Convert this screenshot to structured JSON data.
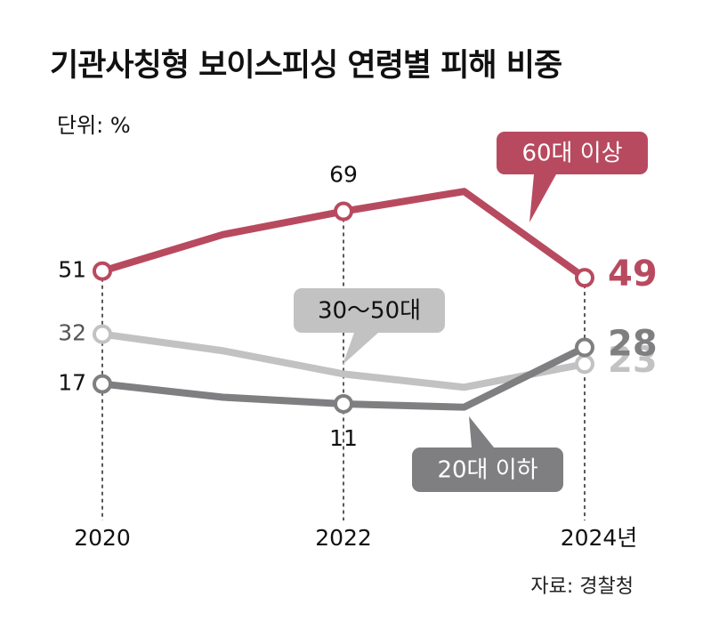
{
  "chart_data": {
    "type": "line",
    "title": "기관사칭형 보이스피싱 연령별 피해 비중",
    "unit": "단위: %",
    "source": "자료: 경찰청",
    "categories": [
      "2020",
      null,
      "2022",
      null,
      "2024년"
    ],
    "ylim": [
      0,
      93
    ],
    "series": [
      {
        "name": "60대 이상",
        "color": "#b84a5f",
        "values": [
          51,
          62,
          69,
          75,
          49
        ],
        "labeled": [
          0,
          2,
          4
        ]
      },
      {
        "name": "30～50대",
        "color": "#c2c2c2",
        "values": [
          32,
          27,
          20,
          16,
          23
        ],
        "labeled": [
          0,
          4
        ]
      },
      {
        "name": "20대 이하",
        "color": "#7f7f81",
        "values": [
          17,
          13,
          11,
          10,
          28
        ],
        "labeled": [
          0,
          2,
          4
        ]
      }
    ]
  }
}
